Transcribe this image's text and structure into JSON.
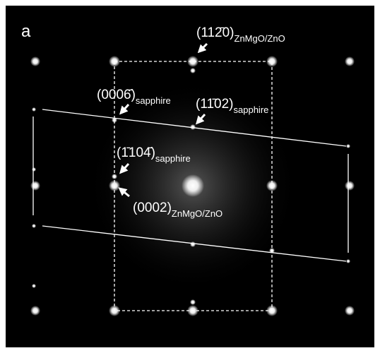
{
  "panel_label": "a",
  "annotations": [
    {
      "main": "(112̄0)",
      "sub": "ZnMgO/ZnO"
    },
    {
      "main": "(0006̄)",
      "sub": "sapphire"
    },
    {
      "main": "(11̄02)",
      "sub": "sapphire"
    },
    {
      "main": "(1̄104̄)",
      "sub": "sapphire"
    },
    {
      "main": "(0002)",
      "sub": "ZnMgO/ZnO"
    }
  ]
}
